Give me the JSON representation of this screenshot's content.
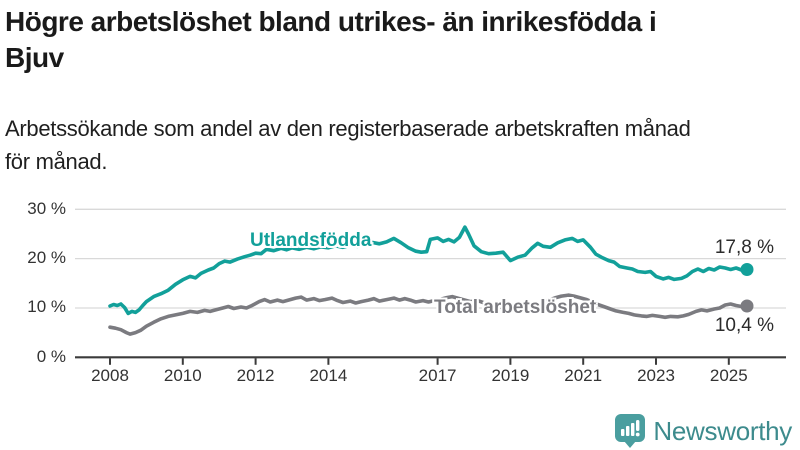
{
  "header": {
    "title_line1": "Högre arbetslöshet bland utrikes- än inrikesfödda i",
    "title_line2": "Bjuv",
    "subtitle_line1": "Arbetssökande som andel av den registerbaserade arbetskraften månad",
    "subtitle_line2": "för månad."
  },
  "chart_data": {
    "type": "line",
    "title": "Högre arbetslöshet bland utrikes- än inrikesfödda i Bjuv",
    "subtitle": "Arbetssökande som andel av den registerbaserade arbetskraften månad för månad.",
    "unit": "%",
    "grid": true,
    "legend_position": "inline-labels-on-lines",
    "x_axis": {
      "range": [
        2008,
        2025.5
      ],
      "tick_years": [
        2008,
        2010,
        2012,
        2014,
        2017,
        2019,
        2021,
        2023,
        2025
      ],
      "tick_labels": [
        "2008",
        "2010",
        "2012",
        "2014",
        "2017",
        "2019",
        "2021",
        "2023",
        "2025"
      ]
    },
    "y_axis": {
      "range": [
        0,
        30
      ],
      "tick_values": [
        0,
        10,
        20,
        30
      ],
      "tick_labels": [
        "0 %",
        "10 %",
        "20 %",
        "30 %"
      ]
    },
    "series": [
      {
        "name": "Utlandsfödda",
        "color": "#12a09a",
        "end_value": 17.8,
        "end_value_label": "17,8 %",
        "points": [
          [
            2008.0,
            10.4
          ],
          [
            2008.1,
            10.7
          ],
          [
            2008.2,
            10.5
          ],
          [
            2008.3,
            10.8
          ],
          [
            2008.4,
            10.1
          ],
          [
            2008.5,
            8.9
          ],
          [
            2008.6,
            9.3
          ],
          [
            2008.7,
            9.1
          ],
          [
            2008.8,
            9.6
          ],
          [
            2008.9,
            10.5
          ],
          [
            2009.0,
            11.3
          ],
          [
            2009.2,
            12.3
          ],
          [
            2009.4,
            12.9
          ],
          [
            2009.6,
            13.6
          ],
          [
            2009.8,
            14.8
          ],
          [
            2010.0,
            15.7
          ],
          [
            2010.2,
            16.4
          ],
          [
            2010.35,
            16.1
          ],
          [
            2010.5,
            17.0
          ],
          [
            2010.7,
            17.7
          ],
          [
            2010.85,
            18.1
          ],
          [
            2011.0,
            19.0
          ],
          [
            2011.15,
            19.5
          ],
          [
            2011.3,
            19.3
          ],
          [
            2011.5,
            19.9
          ],
          [
            2011.7,
            20.4
          ],
          [
            2011.85,
            20.7
          ],
          [
            2012.0,
            21.1
          ],
          [
            2012.15,
            21.0
          ],
          [
            2012.3,
            21.9
          ],
          [
            2012.5,
            21.6
          ],
          [
            2012.7,
            22.1
          ],
          [
            2012.85,
            21.8
          ],
          [
            2013.0,
            22.2
          ],
          [
            2013.2,
            21.9
          ],
          [
            2013.4,
            22.3
          ],
          [
            2013.6,
            22.0
          ],
          [
            2013.8,
            22.4
          ],
          [
            2014.0,
            22.2
          ],
          [
            2014.2,
            22.6
          ],
          [
            2014.4,
            22.3
          ],
          [
            2014.6,
            22.7
          ],
          [
            2014.8,
            22.5
          ],
          [
            2015.0,
            22.9
          ],
          [
            2015.2,
            23.3
          ],
          [
            2015.4,
            23.0
          ],
          [
            2015.6,
            23.4
          ],
          [
            2015.8,
            24.1
          ],
          [
            2016.0,
            23.2
          ],
          [
            2016.2,
            22.2
          ],
          [
            2016.4,
            21.5
          ],
          [
            2016.55,
            21.3
          ],
          [
            2016.7,
            21.4
          ],
          [
            2016.8,
            23.9
          ],
          [
            2017.0,
            24.2
          ],
          [
            2017.15,
            23.5
          ],
          [
            2017.3,
            23.9
          ],
          [
            2017.45,
            23.4
          ],
          [
            2017.6,
            24.3
          ],
          [
            2017.75,
            26.4
          ],
          [
            2017.85,
            25.0
          ],
          [
            2018.0,
            22.6
          ],
          [
            2018.2,
            21.4
          ],
          [
            2018.4,
            21.0
          ],
          [
            2018.6,
            21.1
          ],
          [
            2018.8,
            21.3
          ],
          [
            2019.0,
            19.6
          ],
          [
            2019.2,
            20.3
          ],
          [
            2019.4,
            20.7
          ],
          [
            2019.6,
            22.2
          ],
          [
            2019.75,
            23.1
          ],
          [
            2019.9,
            22.5
          ],
          [
            2020.1,
            22.3
          ],
          [
            2020.3,
            23.2
          ],
          [
            2020.5,
            23.8
          ],
          [
            2020.7,
            24.1
          ],
          [
            2020.85,
            23.5
          ],
          [
            2021.0,
            23.8
          ],
          [
            2021.2,
            22.3
          ],
          [
            2021.35,
            20.9
          ],
          [
            2021.5,
            20.3
          ],
          [
            2021.7,
            19.6
          ],
          [
            2021.85,
            19.3
          ],
          [
            2022.0,
            18.4
          ],
          [
            2022.2,
            18.1
          ],
          [
            2022.35,
            17.9
          ],
          [
            2022.5,
            17.4
          ],
          [
            2022.7,
            17.2
          ],
          [
            2022.85,
            17.4
          ],
          [
            2023.0,
            16.4
          ],
          [
            2023.2,
            15.9
          ],
          [
            2023.35,
            16.2
          ],
          [
            2023.5,
            15.8
          ],
          [
            2023.7,
            16.0
          ],
          [
            2023.85,
            16.5
          ],
          [
            2024.0,
            17.4
          ],
          [
            2024.15,
            17.9
          ],
          [
            2024.3,
            17.4
          ],
          [
            2024.45,
            18.0
          ],
          [
            2024.6,
            17.7
          ],
          [
            2024.75,
            18.3
          ],
          [
            2024.9,
            18.1
          ],
          [
            2025.05,
            17.8
          ],
          [
            2025.2,
            18.1
          ],
          [
            2025.35,
            17.7
          ],
          [
            2025.5,
            17.8
          ]
        ]
      },
      {
        "name": "Total arbetslöshet",
        "color": "#7b7b80",
        "end_value": 10.4,
        "end_value_label": "10,4 %",
        "points": [
          [
            2008.0,
            6.1
          ],
          [
            2008.15,
            5.9
          ],
          [
            2008.3,
            5.6
          ],
          [
            2008.45,
            5.0
          ],
          [
            2008.55,
            4.7
          ],
          [
            2008.7,
            5.0
          ],
          [
            2008.85,
            5.5
          ],
          [
            2009.0,
            6.3
          ],
          [
            2009.2,
            7.1
          ],
          [
            2009.4,
            7.8
          ],
          [
            2009.6,
            8.3
          ],
          [
            2009.8,
            8.6
          ],
          [
            2010.0,
            8.9
          ],
          [
            2010.2,
            9.3
          ],
          [
            2010.4,
            9.1
          ],
          [
            2010.6,
            9.5
          ],
          [
            2010.75,
            9.3
          ],
          [
            2010.9,
            9.6
          ],
          [
            2011.1,
            10.0
          ],
          [
            2011.25,
            10.3
          ],
          [
            2011.4,
            9.9
          ],
          [
            2011.6,
            10.2
          ],
          [
            2011.75,
            10.0
          ],
          [
            2011.9,
            10.5
          ],
          [
            2012.1,
            11.3
          ],
          [
            2012.25,
            11.7
          ],
          [
            2012.4,
            11.2
          ],
          [
            2012.6,
            11.6
          ],
          [
            2012.75,
            11.3
          ],
          [
            2012.9,
            11.6
          ],
          [
            2013.1,
            12.0
          ],
          [
            2013.25,
            12.2
          ],
          [
            2013.4,
            11.6
          ],
          [
            2013.6,
            11.9
          ],
          [
            2013.75,
            11.5
          ],
          [
            2013.9,
            11.7
          ],
          [
            2014.1,
            12.0
          ],
          [
            2014.25,
            11.5
          ],
          [
            2014.4,
            11.1
          ],
          [
            2014.6,
            11.4
          ],
          [
            2014.75,
            11.0
          ],
          [
            2014.9,
            11.3
          ],
          [
            2015.1,
            11.6
          ],
          [
            2015.25,
            11.9
          ],
          [
            2015.4,
            11.4
          ],
          [
            2015.6,
            11.7
          ],
          [
            2015.8,
            12.0
          ],
          [
            2015.95,
            11.6
          ],
          [
            2016.1,
            11.9
          ],
          [
            2016.25,
            11.6
          ],
          [
            2016.4,
            11.2
          ],
          [
            2016.6,
            11.5
          ],
          [
            2016.75,
            11.2
          ],
          [
            2016.9,
            11.5
          ],
          [
            2017.1,
            11.8
          ],
          [
            2017.25,
            12.1
          ],
          [
            2017.4,
            12.3
          ],
          [
            2017.6,
            11.9
          ],
          [
            2017.75,
            11.6
          ],
          [
            2017.9,
            11.3
          ],
          [
            2018.1,
            11.5
          ],
          [
            2018.25,
            11.1
          ],
          [
            2018.4,
            10.8
          ],
          [
            2018.6,
            10.4
          ],
          [
            2018.75,
            10.1
          ],
          [
            2018.9,
            9.9
          ],
          [
            2019.1,
            9.7
          ],
          [
            2019.25,
            10.0
          ],
          [
            2019.4,
            10.3
          ],
          [
            2019.6,
            10.6
          ],
          [
            2019.75,
            10.9
          ],
          [
            2019.9,
            11.2
          ],
          [
            2020.1,
            11.7
          ],
          [
            2020.25,
            12.1
          ],
          [
            2020.4,
            12.4
          ],
          [
            2020.6,
            12.6
          ],
          [
            2020.75,
            12.4
          ],
          [
            2020.9,
            12.1
          ],
          [
            2021.1,
            11.7
          ],
          [
            2021.25,
            11.2
          ],
          [
            2021.4,
            10.7
          ],
          [
            2021.6,
            10.2
          ],
          [
            2021.75,
            9.8
          ],
          [
            2021.9,
            9.4
          ],
          [
            2022.1,
            9.1
          ],
          [
            2022.25,
            8.9
          ],
          [
            2022.4,
            8.6
          ],
          [
            2022.6,
            8.4
          ],
          [
            2022.75,
            8.3
          ],
          [
            2022.9,
            8.5
          ],
          [
            2023.1,
            8.3
          ],
          [
            2023.25,
            8.1
          ],
          [
            2023.4,
            8.3
          ],
          [
            2023.6,
            8.2
          ],
          [
            2023.75,
            8.4
          ],
          [
            2023.9,
            8.7
          ],
          [
            2024.1,
            9.3
          ],
          [
            2024.25,
            9.6
          ],
          [
            2024.4,
            9.4
          ],
          [
            2024.6,
            9.8
          ],
          [
            2024.75,
            10.0
          ],
          [
            2024.9,
            10.6
          ],
          [
            2025.05,
            10.8
          ],
          [
            2025.2,
            10.5
          ],
          [
            2025.35,
            10.3
          ],
          [
            2025.5,
            10.4
          ]
        ]
      }
    ],
    "colors": {
      "grid": "#d9d9d9",
      "axis": "#3b3b3b",
      "tick_text": "#333333",
      "value_text": "#2b2b2b"
    }
  },
  "footer": {
    "brand_name": "Newsworthy",
    "brand_color": "#3d8b8d",
    "icon": "newsworthy-bar-chart-bubble-icon",
    "icon_color": "#4a9e9f"
  }
}
